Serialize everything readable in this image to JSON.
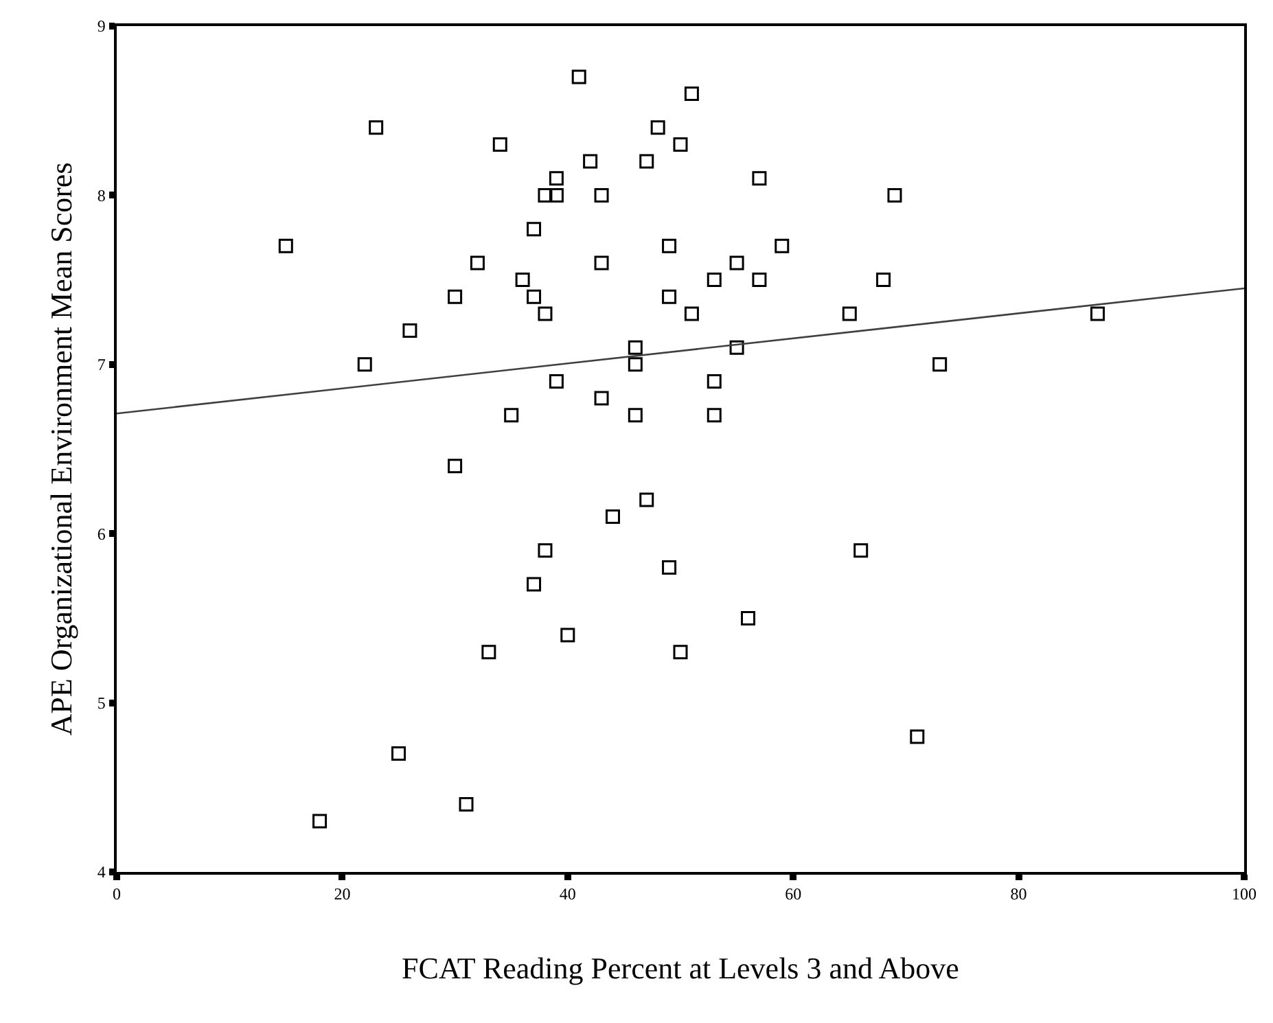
{
  "chart_data": {
    "type": "scatter",
    "xlabel": "FCAT Reading Percent at Levels 3 and Above",
    "ylabel": "APE Organizational Environment Mean Scores",
    "xlim": [
      0,
      100
    ],
    "xticks": [
      0,
      20,
      40,
      60,
      80,
      100
    ],
    "ylim": [
      4,
      9
    ],
    "yticks": [
      4,
      5,
      6,
      7,
      8,
      9
    ],
    "marker": "square",
    "series": [
      {
        "color": "#000000",
        "x": [
          15,
          18,
          22,
          23,
          25,
          26,
          30,
          30,
          31,
          32,
          33,
          34,
          35,
          36,
          37,
          37,
          37,
          38,
          38,
          38,
          39,
          39,
          39,
          40,
          41,
          42,
          43,
          43,
          43,
          44,
          46,
          46,
          46,
          47,
          47,
          48,
          49,
          49,
          49,
          50,
          50,
          51,
          51,
          53,
          53,
          53,
          55,
          55,
          56,
          57,
          57,
          59,
          65,
          66,
          68,
          69,
          71,
          73,
          87
        ],
        "values": [
          7.7,
          4.3,
          7.0,
          8.4,
          4.7,
          7.2,
          7.4,
          6.4,
          4.4,
          7.6,
          5.3,
          8.3,
          6.7,
          7.5,
          7.8,
          7.4,
          5.7,
          8.0,
          7.3,
          5.9,
          8.1,
          8.0,
          6.9,
          5.4,
          8.7,
          8.2,
          8.0,
          7.6,
          6.8,
          6.1,
          7.1,
          7.0,
          6.7,
          8.2,
          6.2,
          8.4,
          7.7,
          7.4,
          5.8,
          8.3,
          5.3,
          8.6,
          7.3,
          7.5,
          6.9,
          6.7,
          7.6,
          7.1,
          5.5,
          8.1,
          7.5,
          7.7,
          7.3,
          5.9,
          7.5,
          8.0,
          4.8,
          7.0,
          7.3
        ]
      },
      {
        "type": "line",
        "color": "#404040",
        "marker": "none",
        "x": [
          0,
          100
        ],
        "values": [
          6.71,
          7.45
        ]
      }
    ]
  }
}
